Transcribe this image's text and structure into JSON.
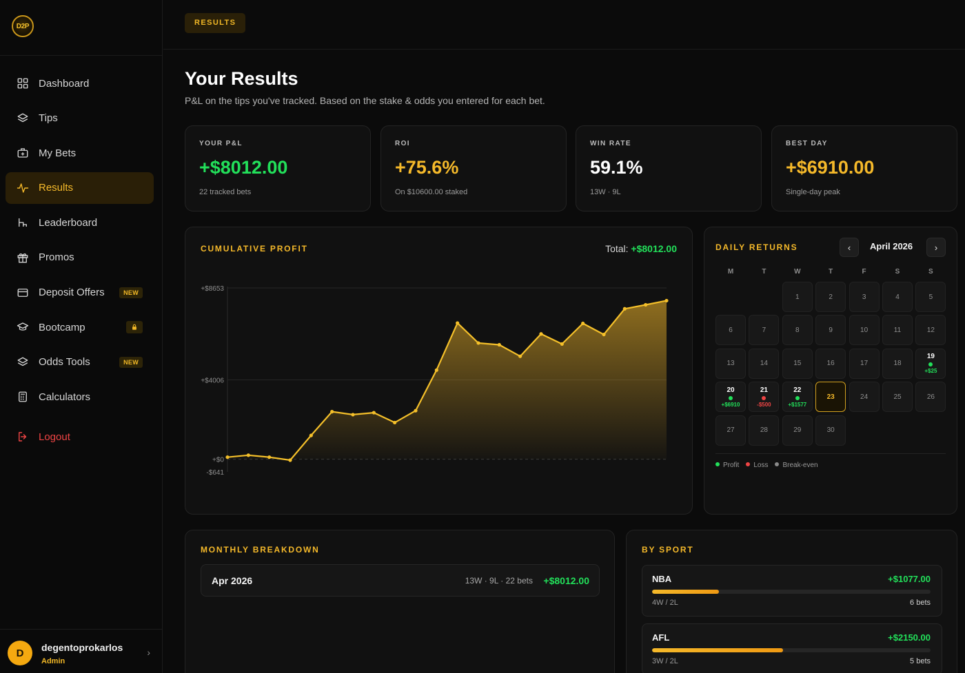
{
  "brand": {
    "logo_text": "D2P"
  },
  "nav": {
    "items": [
      {
        "label": "Dashboard",
        "icon": "grid-icon"
      },
      {
        "label": "Tips",
        "icon": "layers-icon"
      },
      {
        "label": "My Bets",
        "icon": "briefcase-plus-icon"
      },
      {
        "label": "Results",
        "icon": "activity-icon",
        "active": true
      },
      {
        "label": "Leaderboard",
        "icon": "leaderboard-icon"
      },
      {
        "label": "Promos",
        "icon": "gift-icon"
      },
      {
        "label": "Deposit Offers",
        "icon": "card-icon",
        "badge": "NEW"
      },
      {
        "label": "Bootcamp",
        "icon": "cap-icon",
        "locked": true
      },
      {
        "label": "Odds Tools",
        "icon": "layers-icon",
        "badge": "NEW"
      },
      {
        "label": "Calculators",
        "icon": "calculator-icon"
      }
    ],
    "logout": "Logout"
  },
  "user": {
    "initial": "D",
    "name": "degentoprokarlos",
    "role": "Admin"
  },
  "topbar": {
    "crumb": "RESULTS"
  },
  "header": {
    "title": "Your Results",
    "subtitle": "P&L on the tips you've tracked. Based on the stake & odds you entered for each bet."
  },
  "stats": [
    {
      "label": "YOUR P&L",
      "value": "+$8012.00",
      "note": "22 tracked bets",
      "tone": "green"
    },
    {
      "label": "ROI",
      "value": "+75.6%",
      "note": "On $10600.00 staked",
      "tone": "gold"
    },
    {
      "label": "WIN RATE",
      "value": "59.1%",
      "note": "13W · 9L",
      "tone": "white"
    },
    {
      "label": "BEST DAY",
      "value": "+$6910.00",
      "note": "Single-day peak",
      "tone": "gold"
    }
  ],
  "cumulative": {
    "title": "CUMULATIVE PROFIT",
    "total_label": "Total:",
    "total_value": "+$8012.00"
  },
  "chart_data": {
    "type": "area",
    "title": "CUMULATIVE PROFIT",
    "y_tick_labels": [
      "+$8653",
      "+$4006",
      "+$0",
      "-$641"
    ],
    "y_ticks": [
      8653,
      4006,
      0,
      -641
    ],
    "ylim": [
      -641,
      8653
    ],
    "x": [
      1,
      2,
      3,
      4,
      5,
      6,
      7,
      8,
      9,
      10,
      11,
      12,
      13,
      14,
      15,
      16,
      17,
      18,
      19,
      20,
      21,
      22
    ],
    "values": [
      100,
      200,
      100,
      -50,
      1200,
      2400,
      2250,
      2350,
      1850,
      2450,
      4500,
      6880,
      5870,
      5780,
      5200,
      6330,
      5820,
      6860,
      6300,
      7600,
      7800,
      8012
    ],
    "grid": true,
    "legend": "none"
  },
  "calendar": {
    "title": "DAILY RETURNS",
    "month": "April 2026",
    "prev": "‹",
    "next": "›",
    "weekdays": [
      "M",
      "T",
      "W",
      "T",
      "F",
      "S",
      "S"
    ],
    "first_weekday_index": 2,
    "days_in_month": 30,
    "today": 23,
    "results": {
      "19": {
        "amount": "+$25",
        "status": "profit"
      },
      "20": {
        "amount": "+$6910",
        "status": "profit"
      },
      "21": {
        "amount": "-$500",
        "status": "loss"
      },
      "22": {
        "amount": "+$1577",
        "status": "profit"
      }
    },
    "legend": [
      "Profit",
      "Loss",
      "Break-even"
    ],
    "colors": {
      "profit": "#22e05a",
      "loss": "#ef4444",
      "even": "#8a8a8a"
    }
  },
  "monthly": {
    "title": "MONTHLY BREAKDOWN",
    "rows": [
      {
        "month": "Apr 2026",
        "stats": "13W · 9L · 22 bets",
        "pl": "+$8012.00"
      }
    ]
  },
  "by_sport": {
    "title": "BY SPORT",
    "rows": [
      {
        "sport": "NBA",
        "pl": "+$1077.00",
        "record": "4W / 2L",
        "bets": "6 bets",
        "bar_fraction": 0.24
      },
      {
        "sport": "AFL",
        "pl": "+$2150.00",
        "record": "3W / 2L",
        "bets": "5 bets",
        "bar_fraction": 0.47
      }
    ]
  }
}
